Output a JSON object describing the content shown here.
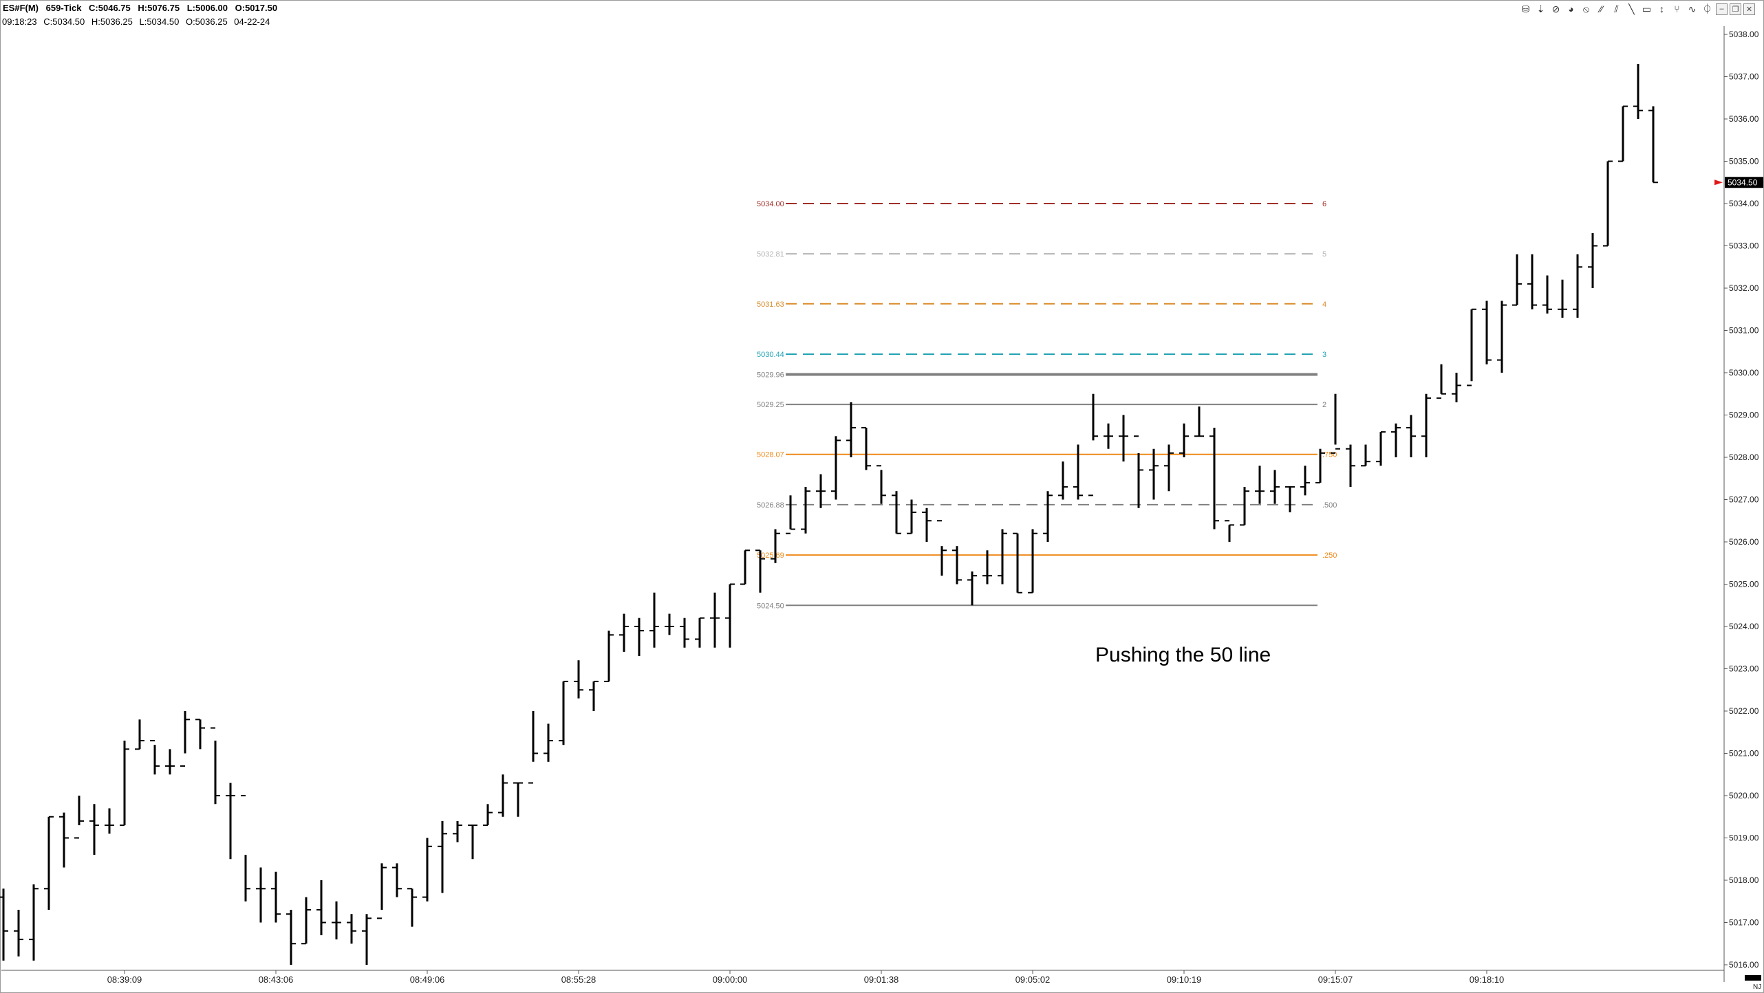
{
  "header": {
    "title_fields": [
      "ES#F(M)",
      "659-Tick",
      "C:5046.75",
      "H:5076.75",
      "L:5006.00",
      "O:5017.50"
    ],
    "info_fields": [
      "09:18:23",
      "C:5034.50",
      "H:5036.25",
      "L:5034.50",
      "O:5036.25",
      "04-22-24"
    ]
  },
  "toolbar": {
    "icons": [
      "data-icon",
      "cursor-icon",
      "stop-icon",
      "color-icon",
      "forbidden-icon",
      "trendline-icon",
      "channel-icon",
      "draw-icon",
      "highlight-icon",
      "cursor-arrow-icon",
      "pitchfork-icon",
      "wave-icon",
      "lock-icon"
    ],
    "glyphs": [
      "⛁",
      "⇣",
      "⊘",
      "◕",
      "⦸",
      "⁄⁄",
      "⫽",
      "╲",
      "▭",
      "↕",
      "⑂",
      "∿",
      "⏀"
    ],
    "window_buttons": [
      "–",
      "❐",
      "✕"
    ]
  },
  "colors": {
    "background": "#ffffff",
    "bars": "#000000",
    "fib_6": "#a0302a",
    "fib_5": "#b4b4b4",
    "fib_4": "#d98b2b",
    "fib_3": "#21a3b3",
    "fib_orange": "#ee8a1a",
    "fib_gray": "#808080",
    "current_price_marker": "#e01818"
  },
  "chart_data": {
    "type": "ohlc",
    "symbol": "ES#F(M)",
    "interval": "659-Tick",
    "ylim": [
      5016.0,
      5038.0
    ],
    "y_ticks": [
      "5016.00",
      "5017.00",
      "5018.00",
      "5019.00",
      "5020.00",
      "5021.00",
      "5022.00",
      "5023.00",
      "5024.00",
      "5025.00",
      "5026.00",
      "5027.00",
      "5028.00",
      "5029.00",
      "5030.00",
      "5031.00",
      "5032.00",
      "5033.00",
      "5034.00",
      "5035.00",
      "5036.00",
      "5037.00",
      "5038.00"
    ],
    "x_ticks": [
      "08:39:09",
      "08:43:06",
      "08:49:06",
      "08:55:28",
      "09:00:00",
      "09:01:38",
      "09:05:02",
      "09:10:19",
      "09:15:07",
      "09:18:10"
    ],
    "x_tick_bar_index": [
      8,
      18,
      28,
      38,
      48,
      58,
      68,
      78,
      88,
      98
    ],
    "current_price": "5034.50",
    "bars": [
      [
        5017.6,
        5017.8,
        5016.1,
        5016.8
      ],
      [
        5016.8,
        5017.3,
        5016.2,
        5016.6
      ],
      [
        5016.6,
        5017.9,
        5016.1,
        5017.8
      ],
      [
        5017.8,
        5019.5,
        5017.3,
        5019.5
      ],
      [
        5019.5,
        5019.6,
        5018.3,
        5019.0
      ],
      [
        5019.0,
        5020.0,
        5019.3,
        5019.4
      ],
      [
        5019.4,
        5019.8,
        5018.6,
        5019.3
      ],
      [
        5019.3,
        5019.7,
        5019.1,
        5019.3
      ],
      [
        5019.3,
        5021.3,
        5019.3,
        5021.1
      ],
      [
        5021.1,
        5021.8,
        5021.1,
        5021.3
      ],
      [
        5021.3,
        5021.2,
        5020.5,
        5020.7
      ],
      [
        5020.7,
        5021.1,
        5020.5,
        5020.7
      ],
      [
        5020.7,
        5022.0,
        5021.0,
        5021.8
      ],
      [
        5021.8,
        5021.8,
        5021.1,
        5021.6
      ],
      [
        5021.6,
        5021.3,
        5019.8,
        5020.0
      ],
      [
        5020.0,
        5020.3,
        5018.5,
        5020.0
      ],
      [
        5020.0,
        5018.6,
        5017.5,
        5017.8
      ],
      [
        5017.8,
        5018.3,
        5017.0,
        5017.8
      ],
      [
        5017.8,
        5018.2,
        5017.0,
        5017.2
      ],
      [
        5017.2,
        5017.3,
        5016.0,
        5016.5
      ],
      [
        5016.5,
        5017.6,
        5016.5,
        5017.3
      ],
      [
        5017.3,
        5018.0,
        5016.7,
        5017.0
      ],
      [
        5017.0,
        5017.5,
        5016.6,
        5017.0
      ],
      [
        5017.0,
        5017.2,
        5016.5,
        5016.8
      ],
      [
        5016.8,
        5017.2,
        5016.0,
        5017.1
      ],
      [
        5017.1,
        5018.4,
        5017.3,
        5018.3
      ],
      [
        5018.3,
        5018.4,
        5017.6,
        5017.8
      ],
      [
        5017.8,
        5017.8,
        5016.9,
        5017.6
      ],
      [
        5017.6,
        5019.0,
        5017.5,
        5018.8
      ],
      [
        5018.8,
        5019.4,
        5017.7,
        5019.1
      ],
      [
        5019.1,
        5019.4,
        5018.9,
        5019.3
      ],
      [
        5019.3,
        5019.3,
        5018.5,
        5019.3
      ],
      [
        5019.3,
        5019.8,
        5019.3,
        5019.6
      ],
      [
        5019.6,
        5020.5,
        5019.5,
        5020.3
      ],
      [
        5020.3,
        5020.3,
        5019.5,
        5020.3
      ],
      [
        5020.3,
        5022.0,
        5020.8,
        5021.0
      ],
      [
        5021.0,
        5021.7,
        5020.8,
        5021.3
      ],
      [
        5021.3,
        5022.7,
        5021.2,
        5022.7
      ],
      [
        5022.7,
        5023.2,
        5022.3,
        5022.5
      ],
      [
        5022.5,
        5022.7,
        5022.0,
        5022.7
      ],
      [
        5022.7,
        5023.9,
        5022.7,
        5023.8
      ],
      [
        5023.8,
        5024.3,
        5023.4,
        5024.0
      ],
      [
        5024.0,
        5024.2,
        5023.3,
        5023.9
      ],
      [
        5023.9,
        5024.8,
        5023.5,
        5024.0
      ],
      [
        5024.0,
        5024.3,
        5023.8,
        5024.0
      ],
      [
        5024.0,
        5024.2,
        5023.5,
        5023.7
      ],
      [
        5023.7,
        5024.2,
        5023.5,
        5024.2
      ],
      [
        5024.2,
        5024.8,
        5023.5,
        5024.2
      ],
      [
        5024.2,
        5025.0,
        5023.5,
        5025.0
      ],
      [
        5025.0,
        5025.8,
        5025.0,
        5025.8
      ],
      [
        5025.8,
        5025.8,
        5024.8,
        5025.6
      ],
      [
        5025.6,
        5026.3,
        5025.5,
        5026.2
      ],
      [
        5026.2,
        5027.1,
        5026.3,
        5026.3
      ],
      [
        5026.3,
        5027.3,
        5026.2,
        5027.2
      ],
      [
        5027.2,
        5027.6,
        5026.8,
        5027.2
      ],
      [
        5027.2,
        5028.5,
        5027.0,
        5028.4
      ],
      [
        5028.4,
        5029.3,
        5028.0,
        5028.7
      ],
      [
        5028.7,
        5028.7,
        5027.7,
        5027.8
      ],
      [
        5027.8,
        5027.7,
        5026.9,
        5027.1
      ],
      [
        5027.1,
        5027.2,
        5026.2,
        5026.2
      ],
      [
        5026.2,
        5027.0,
        5026.2,
        5026.7
      ],
      [
        5026.7,
        5026.8,
        5026.0,
        5026.5
      ],
      [
        5026.5,
        5025.9,
        5025.2,
        5025.8
      ],
      [
        5025.8,
        5025.9,
        5025.0,
        5025.1
      ],
      [
        5025.1,
        5025.3,
        5024.5,
        5025.2
      ],
      [
        5025.2,
        5025.8,
        5025.0,
        5025.2
      ],
      [
        5025.2,
        5026.3,
        5025.0,
        5026.2
      ],
      [
        5026.2,
        5026.2,
        5024.8,
        5024.8
      ],
      [
        5024.8,
        5026.3,
        5024.8,
        5026.2
      ],
      [
        5026.2,
        5027.2,
        5026.0,
        5027.1
      ],
      [
        5027.1,
        5027.9,
        5027.0,
        5027.3
      ],
      [
        5027.3,
        5028.3,
        5027.0,
        5027.1
      ],
      [
        5027.1,
        5029.5,
        5028.4,
        5028.5
      ],
      [
        5028.5,
        5028.8,
        5028.2,
        5028.5
      ],
      [
        5028.5,
        5029.0,
        5027.9,
        5028.5
      ],
      [
        5028.5,
        5028.1,
        5026.8,
        5027.7
      ],
      [
        5027.7,
        5028.2,
        5027.0,
        5027.8
      ],
      [
        5027.8,
        5028.3,
        5027.2,
        5028.1
      ],
      [
        5028.1,
        5028.8,
        5028.0,
        5028.5
      ],
      [
        5028.5,
        5029.2,
        5028.5,
        5028.5
      ],
      [
        5028.5,
        5028.7,
        5026.3,
        5026.5
      ],
      [
        5026.5,
        5026.4,
        5026.0,
        5026.4
      ],
      [
        5026.4,
        5027.3,
        5026.4,
        5027.2
      ],
      [
        5027.2,
        5027.8,
        5026.9,
        5027.2
      ],
      [
        5027.2,
        5027.7,
        5026.9,
        5027.3
      ],
      [
        5027.3,
        5027.3,
        5026.7,
        5027.3
      ],
      [
        5027.3,
        5027.8,
        5027.1,
        5027.4
      ],
      [
        5027.4,
        5028.2,
        5027.4,
        5028.1
      ],
      [
        5028.1,
        5029.5,
        5028.3,
        5028.2
      ],
      [
        5028.2,
        5028.3,
        5027.3,
        5027.8
      ],
      [
        5027.8,
        5028.3,
        5027.8,
        5027.9
      ],
      [
        5027.9,
        5028.6,
        5027.8,
        5028.6
      ],
      [
        5028.6,
        5028.8,
        5028.0,
        5028.7
      ],
      [
        5028.7,
        5029.0,
        5028.0,
        5028.5
      ],
      [
        5028.5,
        5029.5,
        5028.0,
        5029.4
      ],
      [
        5029.4,
        5030.2,
        5029.5,
        5029.5
      ],
      [
        5029.5,
        5030.0,
        5029.3,
        5029.7
      ],
      [
        5029.7,
        5031.5,
        5029.8,
        5031.5
      ],
      [
        5031.5,
        5031.7,
        5030.2,
        5030.3
      ],
      [
        5030.3,
        5031.7,
        5030.0,
        5031.6
      ],
      [
        5031.6,
        5032.8,
        5031.6,
        5032.1
      ],
      [
        5032.1,
        5032.8,
        5031.5,
        5031.6
      ],
      [
        5031.6,
        5032.3,
        5031.4,
        5031.5
      ],
      [
        5031.5,
        5032.2,
        5031.3,
        5031.5
      ],
      [
        5031.5,
        5032.8,
        5031.3,
        5032.5
      ],
      [
        5032.5,
        5033.3,
        5032.0,
        5033.0
      ],
      [
        5033.0,
        5035.0,
        5033.0,
        5035.0
      ],
      [
        5035.0,
        5036.3,
        5035.0,
        5036.3
      ],
      [
        5036.3,
        5037.3,
        5036.0,
        5036.2
      ],
      [
        5036.2,
        5036.3,
        5034.5,
        5034.5
      ]
    ],
    "fib_levels": [
      {
        "price": 5034.0,
        "label": "5034.00",
        "ratio": "6",
        "style": "dashed",
        "color_key": "fib_6"
      },
      {
        "price": 5032.81,
        "label": "5032.81",
        "ratio": "5",
        "style": "dashed",
        "color_key": "fib_5"
      },
      {
        "price": 5031.63,
        "label": "5031.63",
        "ratio": "4",
        "style": "dashed",
        "color_key": "fib_4"
      },
      {
        "price": 5030.44,
        "label": "5030.44",
        "ratio": "3",
        "style": "dashed",
        "color_key": "fib_3"
      },
      {
        "price": 5029.96,
        "label": "5029.96",
        "ratio": "",
        "style": "solid-thick",
        "color_key": "fib_gray"
      },
      {
        "price": 5029.25,
        "label": "5029.25",
        "ratio": "2",
        "style": "solid",
        "color_key": "fib_gray"
      },
      {
        "price": 5028.07,
        "label": "5028.07",
        "ratio": ".750",
        "style": "solid",
        "color_key": "fib_orange"
      },
      {
        "price": 5026.88,
        "label": "5026.88",
        "ratio": ".500",
        "style": "dashed",
        "color_key": "fib_gray"
      },
      {
        "price": 5025.69,
        "label": "5025.69",
        "ratio": ".250",
        "style": "solid",
        "color_key": "fib_orange"
      },
      {
        "price": 5024.5,
        "label": "5024.50",
        "ratio": "",
        "style": "solid",
        "color_key": "fib_gray"
      }
    ],
    "annotation": "Pushing the 50 line"
  }
}
